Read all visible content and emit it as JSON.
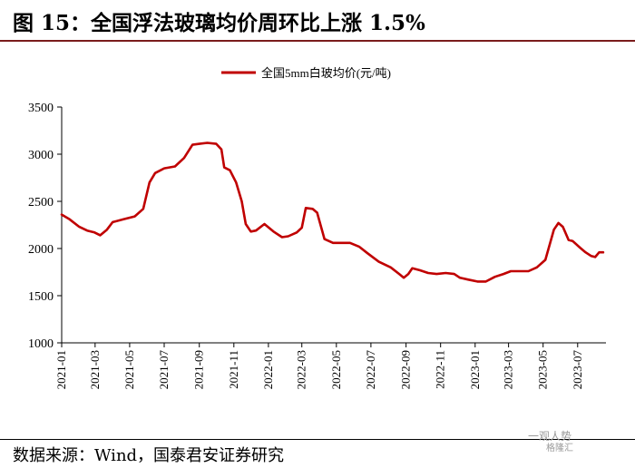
{
  "header": {
    "title": "图 15：全国浮法玻璃均价周环比上涨 1.5%"
  },
  "footer": {
    "source": "数据来源：Wind，国泰君安证券研究"
  },
  "watermark": {
    "line1": "一观人势",
    "line2": "格隆汇"
  },
  "colors": {
    "series": "#c00000",
    "axis": "#000000",
    "rule": "#7a1c1c"
  },
  "chart_data": {
    "type": "line",
    "legend": {
      "position": "top-center"
    },
    "grid": false,
    "ylim": [
      1000,
      3500
    ],
    "yticks": [
      1000,
      1500,
      2000,
      2500,
      3000,
      3500
    ],
    "xlim": [
      "2021-01-01",
      "2023-08-20"
    ],
    "xticks": [
      "2021-01",
      "2021-03",
      "2021-05",
      "2021-07",
      "2021-09",
      "2021-11",
      "2022-01",
      "2022-03",
      "2022-05",
      "2022-07",
      "2022-09",
      "2022-11",
      "2023-01",
      "2023-03",
      "2023-05",
      "2023-07"
    ],
    "series": [
      {
        "name": "全国5mm白玻均价(元/吨)",
        "points": [
          [
            "2021-01-01",
            2360
          ],
          [
            "2021-01-15",
            2310
          ],
          [
            "2021-02-01",
            2230
          ],
          [
            "2021-02-15",
            2190
          ],
          [
            "2021-02-28",
            2170
          ],
          [
            "2021-03-10",
            2140
          ],
          [
            "2021-03-22",
            2200
          ],
          [
            "2021-04-01",
            2280
          ],
          [
            "2021-04-20",
            2310
          ],
          [
            "2021-05-10",
            2340
          ],
          [
            "2021-05-25",
            2420
          ],
          [
            "2021-06-05",
            2700
          ],
          [
            "2021-06-15",
            2800
          ],
          [
            "2021-07-01",
            2850
          ],
          [
            "2021-07-20",
            2870
          ],
          [
            "2021-08-05",
            2960
          ],
          [
            "2021-08-20",
            3100
          ],
          [
            "2021-09-01",
            3110
          ],
          [
            "2021-09-15",
            3120
          ],
          [
            "2021-10-01",
            3110
          ],
          [
            "2021-10-10",
            3050
          ],
          [
            "2021-10-15",
            2860
          ],
          [
            "2021-10-25",
            2830
          ],
          [
            "2021-11-05",
            2700
          ],
          [
            "2021-11-15",
            2500
          ],
          [
            "2021-11-22",
            2260
          ],
          [
            "2021-12-01",
            2180
          ],
          [
            "2021-12-10",
            2190
          ],
          [
            "2021-12-25",
            2260
          ],
          [
            "2022-01-10",
            2180
          ],
          [
            "2022-01-25",
            2120
          ],
          [
            "2022-02-05",
            2130
          ],
          [
            "2022-02-20",
            2170
          ],
          [
            "2022-03-01",
            2220
          ],
          [
            "2022-03-08",
            2430
          ],
          [
            "2022-03-20",
            2420
          ],
          [
            "2022-03-28",
            2380
          ],
          [
            "2022-04-10",
            2100
          ],
          [
            "2022-04-25",
            2060
          ],
          [
            "2022-05-10",
            2060
          ],
          [
            "2022-05-25",
            2060
          ],
          [
            "2022-06-10",
            2020
          ],
          [
            "2022-06-25",
            1950
          ],
          [
            "2022-07-15",
            1860
          ],
          [
            "2022-08-05",
            1800
          ],
          [
            "2022-08-20",
            1730
          ],
          [
            "2022-08-28",
            1690
          ],
          [
            "2022-09-05",
            1730
          ],
          [
            "2022-09-12",
            1790
          ],
          [
            "2022-09-25",
            1770
          ],
          [
            "2022-10-10",
            1740
          ],
          [
            "2022-10-25",
            1730
          ],
          [
            "2022-11-10",
            1740
          ],
          [
            "2022-11-25",
            1730
          ],
          [
            "2022-12-05",
            1690
          ],
          [
            "2022-12-20",
            1670
          ],
          [
            "2023-01-05",
            1650
          ],
          [
            "2023-01-20",
            1650
          ],
          [
            "2023-02-05",
            1700
          ],
          [
            "2023-02-20",
            1730
          ],
          [
            "2023-03-05",
            1760
          ],
          [
            "2023-03-20",
            1760
          ],
          [
            "2023-04-05",
            1760
          ],
          [
            "2023-04-20",
            1800
          ],
          [
            "2023-05-05",
            1880
          ],
          [
            "2023-05-20",
            2200
          ],
          [
            "2023-05-28",
            2270
          ],
          [
            "2023-06-05",
            2230
          ],
          [
            "2023-06-15",
            2090
          ],
          [
            "2023-06-22",
            2080
          ],
          [
            "2023-07-05",
            2010
          ],
          [
            "2023-07-15",
            1960
          ],
          [
            "2023-07-25",
            1920
          ],
          [
            "2023-08-01",
            1910
          ],
          [
            "2023-08-08",
            1960
          ],
          [
            "2023-08-15",
            1960
          ]
        ]
      }
    ]
  }
}
